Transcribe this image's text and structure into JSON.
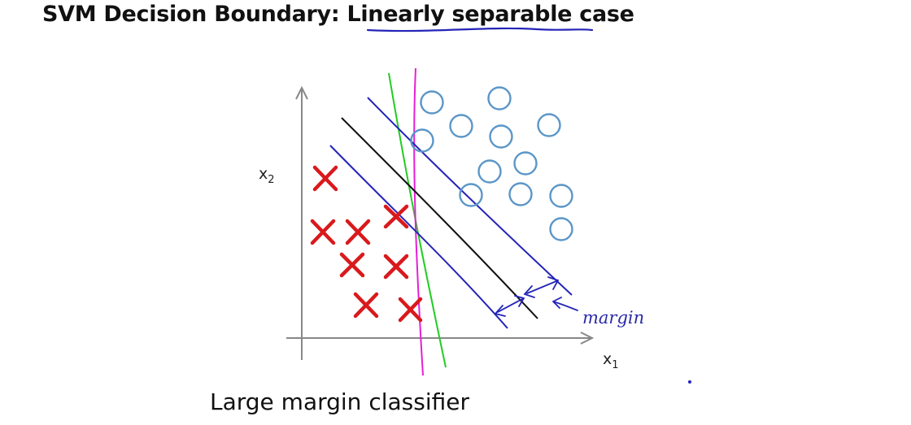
{
  "title": {
    "prefix": "SVM Decision Boundary: ",
    "underlined": "Linearly separable",
    "suffix": " case"
  },
  "caption": "Large margin classifier",
  "axes": {
    "x_label": "x",
    "x_sub": "1",
    "y_label": "x",
    "y_sub": "2"
  },
  "annotation": {
    "margin_text": "margin"
  },
  "colors": {
    "cross": "#d9191c",
    "circle": "#5b96c8",
    "decision_boundary": "#111111",
    "margin_lines": "#2424b8",
    "alt_boundary_green": "#22cc22",
    "alt_boundary_magenta": "#e61fd6",
    "underline": "#2424b8"
  },
  "legend": {
    "negative_class": "x-mark-icon",
    "positive_class": "circle-icon"
  }
}
